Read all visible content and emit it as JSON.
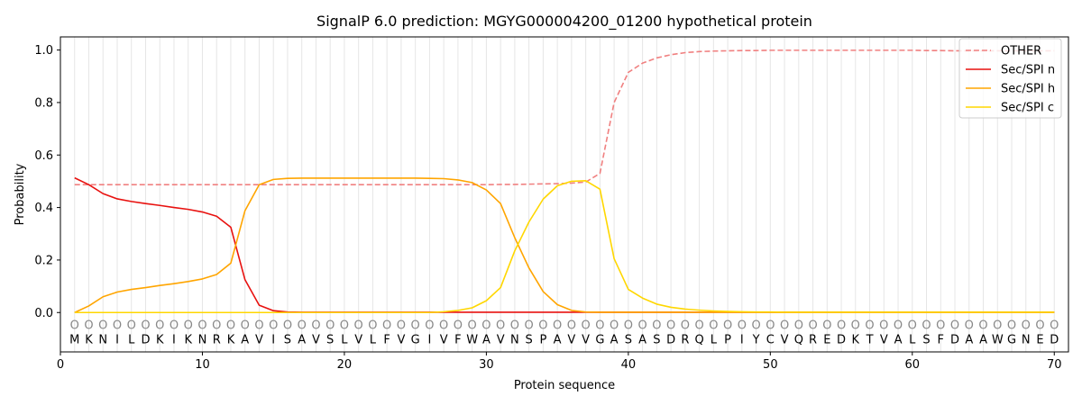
{
  "chart_data": {
    "type": "line",
    "title": "SignalP 6.0 prediction: MGYG000004200_01200 hypothetical protein",
    "xlabel": "Protein sequence",
    "ylabel": "Probability",
    "xlim": [
      0,
      71
    ],
    "ylim": [
      -0.15,
      1.05
    ],
    "x_ticks": [
      0,
      10,
      20,
      30,
      40,
      50,
      60,
      70
    ],
    "y_ticks": [
      0.0,
      0.2,
      0.4,
      0.6,
      0.8,
      1.0
    ],
    "y_tick_labels": [
      "0.0",
      "0.2",
      "0.4",
      "0.6",
      "0.8",
      "1.0"
    ],
    "grid": "vertical lines at each residue",
    "legend_position": "top-right",
    "sequence": [
      "M",
      "K",
      "N",
      "I",
      "L",
      "D",
      "K",
      "I",
      "K",
      "N",
      "R",
      "K",
      "A",
      "V",
      "I",
      "S",
      "A",
      "V",
      "S",
      "L",
      "V",
      "L",
      "F",
      "V",
      "G",
      "I",
      "V",
      "F",
      "W",
      "A",
      "V",
      "N",
      "S",
      "P",
      "A",
      "V",
      "V",
      "G",
      "A",
      "S",
      "A",
      "S",
      "D",
      "R",
      "Q",
      "L",
      "P",
      "I",
      "Y",
      "C",
      "V",
      "Q",
      "R",
      "E",
      "D",
      "K",
      "T",
      "V",
      "A",
      "L",
      "S",
      "F",
      "D",
      "A",
      "A",
      "W",
      "G",
      "N",
      "E",
      "D"
    ],
    "region_labels": [
      "O",
      "O",
      "O",
      "O",
      "O",
      "O",
      "O",
      "O",
      "O",
      "O",
      "O",
      "O",
      "O",
      "O",
      "O",
      "O",
      "O",
      "O",
      "O",
      "O",
      "O",
      "O",
      "O",
      "O",
      "O",
      "O",
      "O",
      "O",
      "O",
      "O",
      "O",
      "O",
      "O",
      "O",
      "O",
      "O",
      "O",
      "O",
      "O",
      "O",
      "O",
      "O",
      "O",
      "O",
      "O",
      "O",
      "O",
      "O",
      "O",
      "O",
      "O",
      "O",
      "O",
      "O",
      "O",
      "O",
      "O",
      "O",
      "O",
      "O",
      "O",
      "O",
      "O",
      "O",
      "O",
      "O",
      "O",
      "O",
      "O",
      "O"
    ],
    "series": [
      {
        "name": "OTHER",
        "color": "#f08080",
        "dashed": true,
        "values": [
          0.487,
          0.487,
          0.487,
          0.487,
          0.487,
          0.487,
          0.487,
          0.487,
          0.487,
          0.487,
          0.487,
          0.487,
          0.487,
          0.487,
          0.487,
          0.487,
          0.487,
          0.487,
          0.487,
          0.487,
          0.487,
          0.487,
          0.487,
          0.487,
          0.487,
          0.487,
          0.487,
          0.487,
          0.487,
          0.487,
          0.488,
          0.488,
          0.489,
          0.49,
          0.491,
          0.493,
          0.497,
          0.53,
          0.8,
          0.915,
          0.95,
          0.97,
          0.982,
          0.99,
          0.994,
          0.996,
          0.997,
          0.998,
          0.998,
          0.999,
          0.999,
          0.999,
          0.999,
          0.999,
          0.999,
          0.999,
          0.999,
          0.999,
          0.999,
          0.999,
          0.998,
          0.998,
          0.997,
          0.997,
          0.997,
          0.997,
          0.997,
          0.997,
          0.997,
          0.997
        ]
      },
      {
        "name": "Sec/SPI n",
        "color": "#e8110f",
        "dashed": false,
        "values": [
          0.513,
          0.487,
          0.453,
          0.433,
          0.423,
          0.415,
          0.408,
          0.4,
          0.393,
          0.383,
          0.367,
          0.325,
          0.125,
          0.028,
          0.007,
          0.002,
          0.001,
          0.001,
          0.001,
          0.001,
          0.001,
          0.001,
          0.001,
          0.001,
          0.001,
          0.001,
          0.001,
          0.001,
          0.001,
          0.001,
          0.001,
          0.001,
          0.001,
          0.001,
          0.001,
          0.001,
          0.001,
          0.001,
          0.001,
          0.001,
          0.001,
          0.001,
          0.001,
          0.001,
          0.001,
          0.001,
          0.001,
          0.001,
          0.001,
          0.001,
          0.001,
          0.001,
          0.001,
          0.001,
          0.001,
          0.001,
          0.001,
          0.001,
          0.001,
          0.001,
          0.001,
          0.001,
          0.001,
          0.001,
          0.001,
          0.001,
          0.001,
          0.001,
          0.001,
          0.001
        ]
      },
      {
        "name": "Sec/SPI h",
        "color": "#ffa500",
        "dashed": false,
        "values": [
          0.0,
          0.025,
          0.06,
          0.078,
          0.088,
          0.095,
          0.103,
          0.11,
          0.118,
          0.128,
          0.145,
          0.188,
          0.388,
          0.487,
          0.507,
          0.511,
          0.512,
          0.512,
          0.512,
          0.512,
          0.512,
          0.512,
          0.512,
          0.512,
          0.512,
          0.511,
          0.51,
          0.505,
          0.495,
          0.467,
          0.415,
          0.285,
          0.17,
          0.08,
          0.03,
          0.008,
          0.002,
          0.001,
          0.001,
          0.001,
          0.001,
          0.001,
          0.001,
          0.001,
          0.001,
          0.001,
          0.001,
          0.001,
          0.001,
          0.001,
          0.001,
          0.001,
          0.001,
          0.001,
          0.001,
          0.001,
          0.001,
          0.001,
          0.001,
          0.001,
          0.001,
          0.001,
          0.001,
          0.001,
          0.001,
          0.001,
          0.001,
          0.001,
          0.001,
          0.001
        ]
      },
      {
        "name": "Sec/SPI c",
        "color": "#ffd700",
        "dashed": false,
        "values": [
          0.0,
          0.0,
          0.0,
          0.0,
          0.0,
          0.0,
          0.0,
          0.0,
          0.0,
          0.0,
          0.0,
          0.0,
          0.0,
          0.0,
          0.0,
          0.0,
          0.0,
          0.0,
          0.0,
          0.0,
          0.0,
          0.0,
          0.0,
          0.0,
          0.0,
          0.0,
          0.003,
          0.008,
          0.018,
          0.045,
          0.095,
          0.235,
          0.345,
          0.432,
          0.483,
          0.5,
          0.502,
          0.47,
          0.205,
          0.088,
          0.055,
          0.032,
          0.02,
          0.013,
          0.009,
          0.006,
          0.004,
          0.003,
          0.002,
          0.002,
          0.001,
          0.001,
          0.001,
          0.001,
          0.001,
          0.001,
          0.001,
          0.001,
          0.001,
          0.001,
          0.001,
          0.001,
          0.001,
          0.001,
          0.001,
          0.001,
          0.001,
          0.001,
          0.001,
          0.001
        ]
      }
    ]
  }
}
